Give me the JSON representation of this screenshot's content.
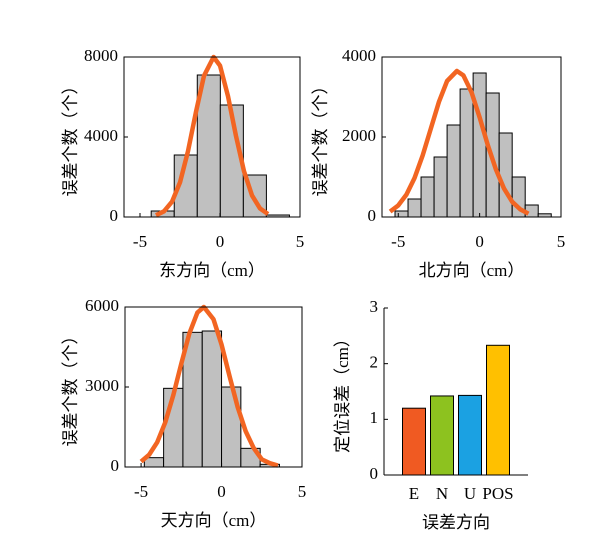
{
  "chart_data": [
    {
      "type": "histogram",
      "xlabel": "东方向（cm）",
      "ylabel": "误差个数（个）",
      "bins": [
        -4.3,
        -2.86,
        -1.42,
        0.02,
        1.46,
        2.9,
        4.34
      ],
      "values": [
        300,
        3100,
        7100,
        5600,
        2100,
        100
      ],
      "color": "#c0c0c0",
      "fit": {
        "color": "#f26522",
        "x": [
          -4,
          -3.5,
          -3,
          -2.5,
          -2,
          -1.5,
          -1,
          -0.4,
          0,
          0.5,
          1,
          1.5,
          2,
          2.5,
          3
        ],
        "values": [
          89,
          284,
          764,
          1730,
          3290,
          5260,
          7060,
          8000,
          7570,
          6040,
          4050,
          2290,
          1080,
          430,
          145
        ]
      },
      "xlim": [
        -6,
        5
      ],
      "xticks": [
        -5,
        0,
        5
      ],
      "ylim": [
        0,
        8000
      ],
      "yticks": [
        0,
        4000,
        8000
      ]
    },
    {
      "type": "histogram",
      "xlabel": "北方向（cm）",
      "ylabel": "误差个数（个）",
      "bins": [
        -5.2,
        -4.4,
        -3.6,
        -2.8,
        -2.0,
        -1.2,
        -0.4,
        0.4,
        1.2,
        2.0,
        2.8,
        3.6,
        4.4
      ],
      "values": [
        150,
        450,
        1000,
        1500,
        2300,
        3200,
        3600,
        3100,
        2100,
        1000,
        300,
        80
      ],
      "color": "#c0c0c0",
      "fit": {
        "color": "#f26522",
        "x": [
          -5.5,
          -5,
          -4.5,
          -4,
          -3.5,
          -3,
          -2.5,
          -2,
          -1.4,
          -1,
          -0.5,
          0,
          0.5,
          1,
          1.5,
          2,
          2.5,
          3
        ],
        "values": [
          137,
          290,
          559,
          975,
          1540,
          2210,
          2880,
          3400,
          3650,
          3540,
          3120,
          2490,
          1800,
          1190,
          710,
          380,
          190,
          83
        ]
      },
      "xlim": [
        -6,
        5
      ],
      "xticks": [
        -5,
        0,
        5
      ],
      "ylim": [
        0,
        4000
      ],
      "yticks": [
        0,
        2000,
        4000
      ]
    },
    {
      "type": "histogram",
      "xlabel": "天方向（cm）",
      "ylabel": "误差个数（个）",
      "bins": [
        -4.8,
        -3.6,
        -2.4,
        -1.2,
        0,
        1.2,
        2.4,
        3.6
      ],
      "values": [
        350,
        2950,
        5050,
        5100,
        3000,
        700,
        100
      ],
      "color": "#c0c0c0",
      "fit": {
        "color": "#f26522",
        "x": [
          -5,
          -4.5,
          -4,
          -3.5,
          -3,
          -2.5,
          -2,
          -1.5,
          -1.1,
          -0.5,
          0,
          0.5,
          1,
          1.5,
          2,
          2.5,
          3,
          3.5
        ],
        "values": [
          204,
          460,
          925,
          1670,
          2690,
          3880,
          5010,
          5790,
          6000,
          5540,
          4590,
          3400,
          2250,
          1340,
          708,
          287,
          143,
          55
        ]
      },
      "xlim": [
        -6,
        5
      ],
      "xticks": [
        -5,
        0,
        5
      ],
      "ylim": [
        0,
        6000
      ],
      "yticks": [
        0,
        3000,
        6000
      ]
    },
    {
      "type": "bar",
      "xlabel": "误差方向",
      "ylabel": "定位误差（cm）",
      "categories": [
        "E",
        "N",
        "U",
        "POS"
      ],
      "values": [
        1.2,
        1.42,
        1.43,
        2.33
      ],
      "colors": [
        "#f05a22",
        "#8dc21f",
        "#1ba1e2",
        "#ffc000"
      ],
      "ylim": [
        0,
        3
      ],
      "yticks": [
        0,
        1,
        2,
        3
      ]
    }
  ]
}
